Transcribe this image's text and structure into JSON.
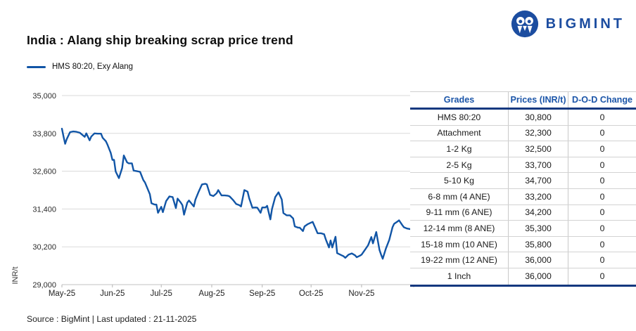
{
  "header": {
    "brand": "BIGMINT",
    "title": "India : Alang ship breaking scrap price trend"
  },
  "legend": {
    "label": "HMS 80:20, Exy Alang"
  },
  "colors": {
    "brand_blue": "#1c4da0",
    "line_blue": "#1155a6",
    "navy_border": "#14387f",
    "grid_gray": "#dadada",
    "axis_gray": "#b5b5b5",
    "tick_text": "#2b2b2b"
  },
  "chart_data": {
    "type": "line",
    "title": "India : Alang ship breaking scrap price trend",
    "series_name": "HMS 80:20, Exy Alang",
    "xlabel": "",
    "ylabel": "INR/t",
    "ylim": [
      29000,
      35000
    ],
    "y_ticks": [
      29000,
      30200,
      31400,
      32600,
      33800,
      35000
    ],
    "x_range_days": [
      0,
      216
    ],
    "x_ticks": [
      {
        "label": "May-25",
        "day": 0
      },
      {
        "label": "Jun-25",
        "day": 31
      },
      {
        "label": "Jul-25",
        "day": 61
      },
      {
        "label": "Aug-25",
        "day": 92
      },
      {
        "label": "Sep-25",
        "day": 123
      },
      {
        "label": "Oct-25",
        "day": 153
      },
      {
        "label": "Nov-25",
        "day": 184
      }
    ],
    "grid": true,
    "legend_position": "top-left",
    "points": [
      [
        0,
        33950
      ],
      [
        1,
        33700
      ],
      [
        2,
        33470
      ],
      [
        3,
        33620
      ],
      [
        5,
        33840
      ],
      [
        7,
        33860
      ],
      [
        9,
        33850
      ],
      [
        11,
        33820
      ],
      [
        14,
        33690
      ],
      [
        15,
        33800
      ],
      [
        17,
        33580
      ],
      [
        18,
        33700
      ],
      [
        20,
        33800
      ],
      [
        22,
        33790
      ],
      [
        24,
        33790
      ],
      [
        25,
        33660
      ],
      [
        27,
        33550
      ],
      [
        28,
        33440
      ],
      [
        30,
        33180
      ],
      [
        31,
        32960
      ],
      [
        32,
        32960
      ],
      [
        33,
        32590
      ],
      [
        35,
        32380
      ],
      [
        37,
        32700
      ],
      [
        38,
        33100
      ],
      [
        40,
        32880
      ],
      [
        41,
        32850
      ],
      [
        43,
        32850
      ],
      [
        44,
        32620
      ],
      [
        46,
        32600
      ],
      [
        48,
        32580
      ],
      [
        50,
        32320
      ],
      [
        51,
        32240
      ],
      [
        54,
        31870
      ],
      [
        55,
        31580
      ],
      [
        57,
        31540
      ],
      [
        58,
        31540
      ],
      [
        59,
        31280
      ],
      [
        61,
        31470
      ],
      [
        62,
        31300
      ],
      [
        64,
        31650
      ],
      [
        66,
        31800
      ],
      [
        68,
        31780
      ],
      [
        70,
        31430
      ],
      [
        71,
        31730
      ],
      [
        73,
        31600
      ],
      [
        74,
        31520
      ],
      [
        75,
        31220
      ],
      [
        77,
        31600
      ],
      [
        78,
        31670
      ],
      [
        81,
        31480
      ],
      [
        82,
        31700
      ],
      [
        84,
        31950
      ],
      [
        86,
        32180
      ],
      [
        88,
        32200
      ],
      [
        89,
        32180
      ],
      [
        91,
        31850
      ],
      [
        93,
        31810
      ],
      [
        95,
        31900
      ],
      [
        96,
        32000
      ],
      [
        98,
        31830
      ],
      [
        100,
        31830
      ],
      [
        102,
        31820
      ],
      [
        103,
        31800
      ],
      [
        105,
        31690
      ],
      [
        107,
        31560
      ],
      [
        109,
        31520
      ],
      [
        110,
        31480
      ],
      [
        112,
        32000
      ],
      [
        114,
        31950
      ],
      [
        115,
        31740
      ],
      [
        117,
        31440
      ],
      [
        119,
        31450
      ],
      [
        120,
        31440
      ],
      [
        122,
        31280
      ],
      [
        123,
        31450
      ],
      [
        125,
        31450
      ],
      [
        126,
        31500
      ],
      [
        128,
        31070
      ],
      [
        129,
        31400
      ],
      [
        131,
        31780
      ],
      [
        133,
        31930
      ],
      [
        135,
        31700
      ],
      [
        136,
        31270
      ],
      [
        138,
        31200
      ],
      [
        140,
        31200
      ],
      [
        142,
        31100
      ],
      [
        143,
        30850
      ],
      [
        145,
        30810
      ],
      [
        146,
        30810
      ],
      [
        148,
        30700
      ],
      [
        149,
        30850
      ],
      [
        151,
        30920
      ],
      [
        153,
        30970
      ],
      [
        154,
        30990
      ],
      [
        156,
        30750
      ],
      [
        157,
        30630
      ],
      [
        159,
        30630
      ],
      [
        161,
        30600
      ],
      [
        162,
        30440
      ],
      [
        164,
        30180
      ],
      [
        165,
        30400
      ],
      [
        166,
        30180
      ],
      [
        168,
        30520
      ],
      [
        169,
        30000
      ],
      [
        171,
        29950
      ],
      [
        173,
        29900
      ],
      [
        174,
        29850
      ],
      [
        176,
        29950
      ],
      [
        178,
        29990
      ],
      [
        180,
        29930
      ],
      [
        181,
        29870
      ],
      [
        183,
        29920
      ],
      [
        184,
        29950
      ],
      [
        186,
        30100
      ],
      [
        188,
        30250
      ],
      [
        190,
        30510
      ],
      [
        191,
        30310
      ],
      [
        193,
        30670
      ],
      [
        195,
        30100
      ],
      [
        196,
        29950
      ],
      [
        197,
        29820
      ],
      [
        199,
        30150
      ],
      [
        201,
        30420
      ],
      [
        203,
        30820
      ],
      [
        204,
        30930
      ],
      [
        206,
        31000
      ],
      [
        207,
        31040
      ],
      [
        209,
        30890
      ],
      [
        210,
        30820
      ],
      [
        212,
        30780
      ],
      [
        214,
        30760
      ],
      [
        216,
        30800
      ]
    ]
  },
  "table": {
    "columns": [
      "Grades",
      "Prices (INR/t)",
      "D-O-D Change"
    ],
    "rows": [
      [
        "HMS 80:20",
        "30,800",
        "0"
      ],
      [
        "Attachment",
        "32,300",
        "0"
      ],
      [
        "1-2 Kg",
        "32,500",
        "0"
      ],
      [
        "2-5 Kg",
        "33,700",
        "0"
      ],
      [
        "5-10 Kg",
        "34,700",
        "0"
      ],
      [
        "6-8 mm (4 ANE)",
        "33,200",
        "0"
      ],
      [
        "9-11 mm (6 ANE)",
        "34,200",
        "0"
      ],
      [
        "12-14 mm (8 ANE)",
        "35,300",
        "0"
      ],
      [
        "15-18 mm (10 ANE)",
        "35,800",
        "0"
      ],
      [
        "19-22 mm (12 ANE)",
        "36,000",
        "0"
      ],
      [
        "1 Inch",
        "36,000",
        "0"
      ]
    ]
  },
  "footer": {
    "source_line": "Source : BigMint | Last updated : 21-11-2025"
  }
}
